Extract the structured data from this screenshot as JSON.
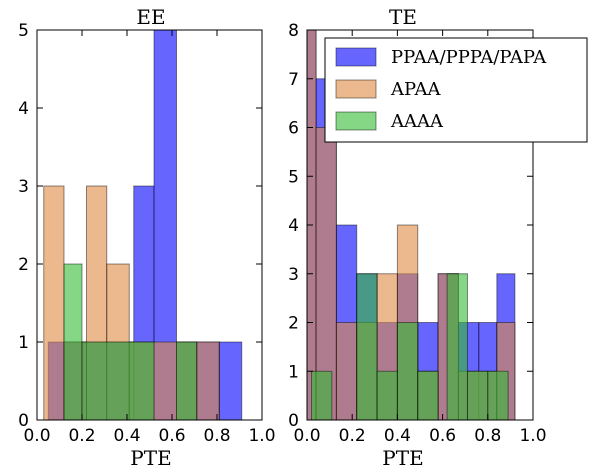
{
  "chart_data": [
    {
      "type": "histogram",
      "title": "EE",
      "xlabel": "PTE",
      "ylabel": "",
      "xlim": [
        0.0,
        1.0
      ],
      "ylim": [
        0,
        5
      ],
      "xticks": [
        "0.0",
        "0.2",
        "0.4",
        "0.6",
        "0.8",
        "1.0"
      ],
      "yticks": [
        "0",
        "1",
        "2",
        "3",
        "4",
        "5"
      ],
      "series": [
        {
          "name": "PPAA/PPPA/PAPA",
          "color": "#0000ff",
          "bins": [
            {
              "x0": 0.05,
              "x1": 0.43,
              "count": 1
            },
            {
              "x0": 0.43,
              "x1": 0.52,
              "count": 3
            },
            {
              "x0": 0.52,
              "x1": 0.62,
              "count": 5
            },
            {
              "x0": 0.62,
              "x1": 0.81,
              "count": 1
            },
            {
              "x0": 0.81,
              "x1": 0.91,
              "count": 1
            }
          ]
        },
        {
          "name": "APAA",
          "color": "#e08b44",
          "bins": [
            {
              "x0": 0.03,
              "x1": 0.12,
              "count": 3
            },
            {
              "x0": 0.12,
              "x1": 0.22,
              "count": 1
            },
            {
              "x0": 0.22,
              "x1": 0.31,
              "count": 3
            },
            {
              "x0": 0.31,
              "x1": 0.41,
              "count": 2
            },
            {
              "x0": 0.41,
              "x1": 0.71,
              "count": 1
            },
            {
              "x0": 0.71,
              "x1": 0.81,
              "count": 1
            }
          ]
        },
        {
          "name": "AAAA",
          "color": "#33bb33",
          "bins": [
            {
              "x0": 0.12,
              "x1": 0.2,
              "count": 2
            },
            {
              "x0": 0.2,
              "x1": 0.52,
              "count": 1
            },
            {
              "x0": 0.62,
              "x1": 0.71,
              "count": 1
            }
          ]
        }
      ]
    },
    {
      "type": "histogram",
      "title": "TE",
      "xlabel": "PTE",
      "ylabel": "",
      "xlim": [
        0.0,
        1.0
      ],
      "ylim": [
        0,
        8
      ],
      "xticks": [
        "0.0",
        "0.2",
        "0.4",
        "0.6",
        "0.8",
        "1.0"
      ],
      "yticks": [
        "0",
        "1",
        "2",
        "3",
        "4",
        "5",
        "6",
        "7",
        "8"
      ],
      "legend": "top-right",
      "series": [
        {
          "name": "PPAA/PPPA/PAPA",
          "color": "#0000ff",
          "bins": [
            {
              "x0": 0.0,
              "x1": 0.04,
              "count": 8
            },
            {
              "x0": 0.04,
              "x1": 0.13,
              "count": 7
            },
            {
              "x0": 0.13,
              "x1": 0.22,
              "count": 4
            },
            {
              "x0": 0.22,
              "x1": 0.31,
              "count": 3
            },
            {
              "x0": 0.31,
              "x1": 0.4,
              "count": 2
            },
            {
              "x0": 0.4,
              "x1": 0.49,
              "count": 3
            },
            {
              "x0": 0.49,
              "x1": 0.58,
              "count": 2
            },
            {
              "x0": 0.58,
              "x1": 0.67,
              "count": 3
            },
            {
              "x0": 0.67,
              "x1": 0.76,
              "count": 2
            },
            {
              "x0": 0.76,
              "x1": 0.84,
              "count": 2
            },
            {
              "x0": 0.84,
              "x1": 0.92,
              "count": 3
            }
          ]
        },
        {
          "name": "APAA",
          "color": "#e08b44",
          "bins": [
            {
              "x0": 0.0,
              "x1": 0.04,
              "count": 8
            },
            {
              "x0": 0.04,
              "x1": 0.13,
              "count": 6
            },
            {
              "x0": 0.13,
              "x1": 0.22,
              "count": 2
            },
            {
              "x0": 0.22,
              "x1": 0.31,
              "count": 2
            },
            {
              "x0": 0.31,
              "x1": 0.4,
              "count": 3
            },
            {
              "x0": 0.4,
              "x1": 0.49,
              "count": 4
            },
            {
              "x0": 0.49,
              "x1": 0.58,
              "count": 1
            },
            {
              "x0": 0.58,
              "x1": 0.67,
              "count": 3
            },
            {
              "x0": 0.67,
              "x1": 0.84,
              "count": 1
            },
            {
              "x0": 0.84,
              "x1": 0.92,
              "count": 2
            }
          ]
        },
        {
          "name": "AAAA",
          "color": "#33bb33",
          "bins": [
            {
              "x0": 0.02,
              "x1": 0.11,
              "count": 1
            },
            {
              "x0": 0.22,
              "x1": 0.31,
              "count": 3
            },
            {
              "x0": 0.31,
              "x1": 0.4,
              "count": 1
            },
            {
              "x0": 0.4,
              "x1": 0.49,
              "count": 2
            },
            {
              "x0": 0.49,
              "x1": 0.58,
              "count": 1
            },
            {
              "x0": 0.62,
              "x1": 0.71,
              "count": 3
            },
            {
              "x0": 0.71,
              "x1": 0.8,
              "count": 1
            },
            {
              "x0": 0.8,
              "x1": 0.89,
              "count": 1
            }
          ]
        }
      ]
    }
  ]
}
